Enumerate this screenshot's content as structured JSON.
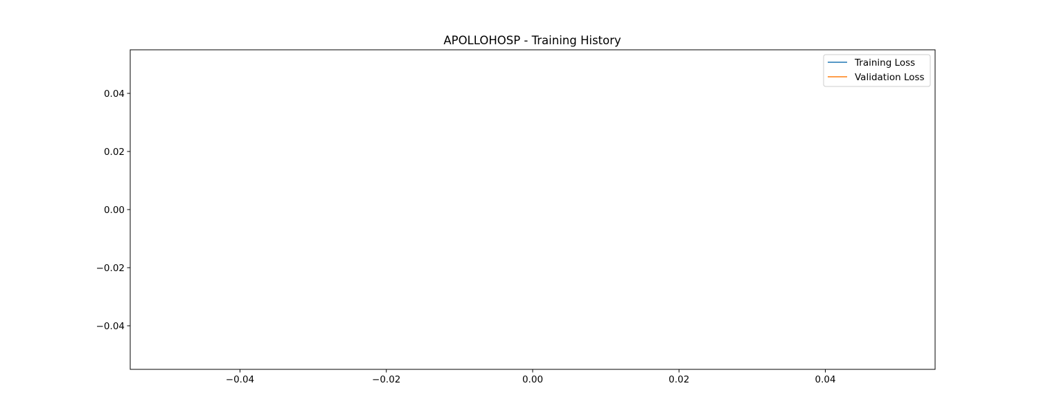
{
  "chart_data": {
    "type": "line",
    "title": "APOLLOHOSP - Training History",
    "xlabel": "",
    "ylabel": "",
    "xlim": [
      -0.055,
      0.055
    ],
    "ylim": [
      -0.055,
      0.055
    ],
    "x_ticks": [
      {
        "value": -0.04,
        "label": "−0.04"
      },
      {
        "value": -0.02,
        "label": "−0.02"
      },
      {
        "value": 0.0,
        "label": "0.00"
      },
      {
        "value": 0.02,
        "label": "0.02"
      },
      {
        "value": 0.04,
        "label": "0.04"
      }
    ],
    "y_ticks": [
      {
        "value": 0.04,
        "label": "0.04"
      },
      {
        "value": 0.02,
        "label": "0.02"
      },
      {
        "value": 0.0,
        "label": "0.00"
      },
      {
        "value": -0.02,
        "label": "−0.02"
      },
      {
        "value": -0.04,
        "label": "−0.04"
      }
    ],
    "grid": false,
    "legend_position": "top-right",
    "series": [
      {
        "name": "Training Loss",
        "color": "#1f77b4",
        "x": [],
        "y": []
      },
      {
        "name": "Validation Loss",
        "color": "#ff7f0e",
        "x": [],
        "y": []
      }
    ]
  }
}
